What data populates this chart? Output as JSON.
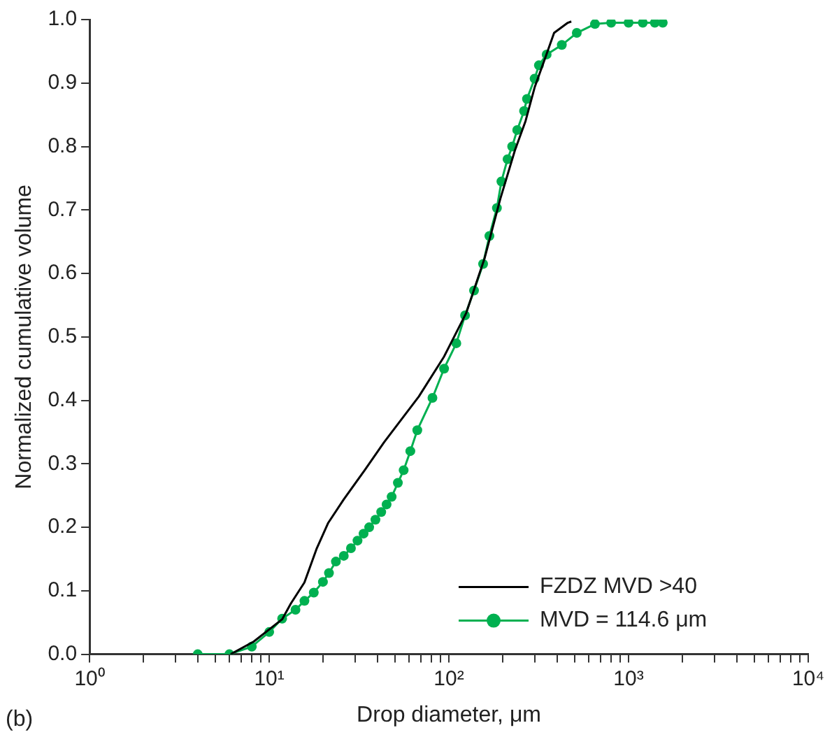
{
  "chart_data": {
    "type": "line",
    "xlabel": "Drop diameter, μm",
    "ylabel": "Normalized cumulative volume",
    "annotations": [
      "(b)"
    ],
    "log": "x",
    "xlim": [
      1,
      10000
    ],
    "xticks": [
      {
        "value": 1,
        "label": "10⁰"
      },
      {
        "value": 2,
        "label": null
      },
      {
        "value": 3,
        "label": null
      },
      {
        "value": 4,
        "label": null
      },
      {
        "value": 5,
        "label": null
      },
      {
        "value": 6,
        "label": null
      },
      {
        "value": 7,
        "label": null
      },
      {
        "value": 8,
        "label": null
      },
      {
        "value": 9,
        "label": null
      },
      {
        "value": 10,
        "label": "10¹"
      },
      {
        "value": 20,
        "label": null
      },
      {
        "value": 30,
        "label": null
      },
      {
        "value": 40,
        "label": null
      },
      {
        "value": 50,
        "label": null
      },
      {
        "value": 60,
        "label": null
      },
      {
        "value": 70,
        "label": null
      },
      {
        "value": 80,
        "label": null
      },
      {
        "value": 90,
        "label": null
      },
      {
        "value": 100,
        "label": "10²"
      },
      {
        "value": 200,
        "label": null
      },
      {
        "value": 300,
        "label": null
      },
      {
        "value": 400,
        "label": null
      },
      {
        "value": 500,
        "label": null
      },
      {
        "value": 600,
        "label": null
      },
      {
        "value": 700,
        "label": null
      },
      {
        "value": 800,
        "label": null
      },
      {
        "value": 900,
        "label": null
      },
      {
        "value": 1000,
        "label": "10³"
      },
      {
        "value": 2000,
        "label": null
      },
      {
        "value": 3000,
        "label": null
      },
      {
        "value": 4000,
        "label": null
      },
      {
        "value": 5000,
        "label": null
      },
      {
        "value": 6000,
        "label": null
      },
      {
        "value": 7000,
        "label": null
      },
      {
        "value": 8000,
        "label": null
      },
      {
        "value": 9000,
        "label": null
      },
      {
        "value": 10000,
        "label": "10⁴"
      }
    ],
    "ylim": [
      0,
      1
    ],
    "yticks": [
      {
        "value": 0,
        "label": "0.0"
      },
      0.1,
      0.2,
      0.3,
      0.4,
      0.5,
      0.6,
      0.7,
      0.8,
      0.9,
      {
        "value": 1,
        "label": "1.0"
      }
    ],
    "grid": false,
    "legend": "bottom right",
    "series": [
      {
        "name": "FZDZ MVD >40",
        "color": "#000000",
        "marker": "none",
        "x": [
          6.1,
          8.2,
          11.8,
          13.2,
          15.7,
          18.4,
          21.3,
          26,
          34,
          43.6,
          68,
          94,
          125,
          158,
          193,
          233,
          267,
          300,
          344,
          385,
          459,
          480
        ],
        "values": [
          0,
          0.02,
          0.055,
          0.08,
          0.113,
          0.167,
          0.207,
          0.244,
          0.29,
          0.334,
          0.406,
          0.469,
          0.538,
          0.624,
          0.717,
          0.794,
          0.84,
          0.893,
          0.94,
          0.979,
          0.995,
          0.997
        ]
      },
      {
        "name": "MVD = 114.6 μm",
        "color": "#00b050",
        "marker": "circle",
        "x": [
          4,
          6,
          8,
          10,
          11.8,
          14,
          15.7,
          17.7,
          19.9,
          21.5,
          23.5,
          26,
          28.5,
          31,
          33.5,
          36,
          39,
          42,
          45,
          48,
          52,
          56,
          61,
          66.7,
          81,
          94,
          110,
          123,
          138,
          155,
          168,
          185,
          196,
          212,
          225,
          240,
          262,
          272,
          300,
          317,
          350,
          425,
          515,
          650,
          800,
          1000,
          1200,
          1400,
          1550
        ],
        "values": [
          0,
          0,
          0.012,
          0.035,
          0.056,
          0.07,
          0.084,
          0.097,
          0.114,
          0.128,
          0.146,
          0.155,
          0.167,
          0.179,
          0.19,
          0.2,
          0.212,
          0.224,
          0.236,
          0.248,
          0.27,
          0.29,
          0.32,
          0.353,
          0.404,
          0.45,
          0.49,
          0.534,
          0.573,
          0.615,
          0.659,
          0.703,
          0.745,
          0.78,
          0.8,
          0.826,
          0.856,
          0.875,
          0.907,
          0.928,
          0.945,
          0.96,
          0.979,
          0.993,
          0.995,
          0.995,
          0.995,
          0.995,
          0.995
        ]
      }
    ]
  }
}
